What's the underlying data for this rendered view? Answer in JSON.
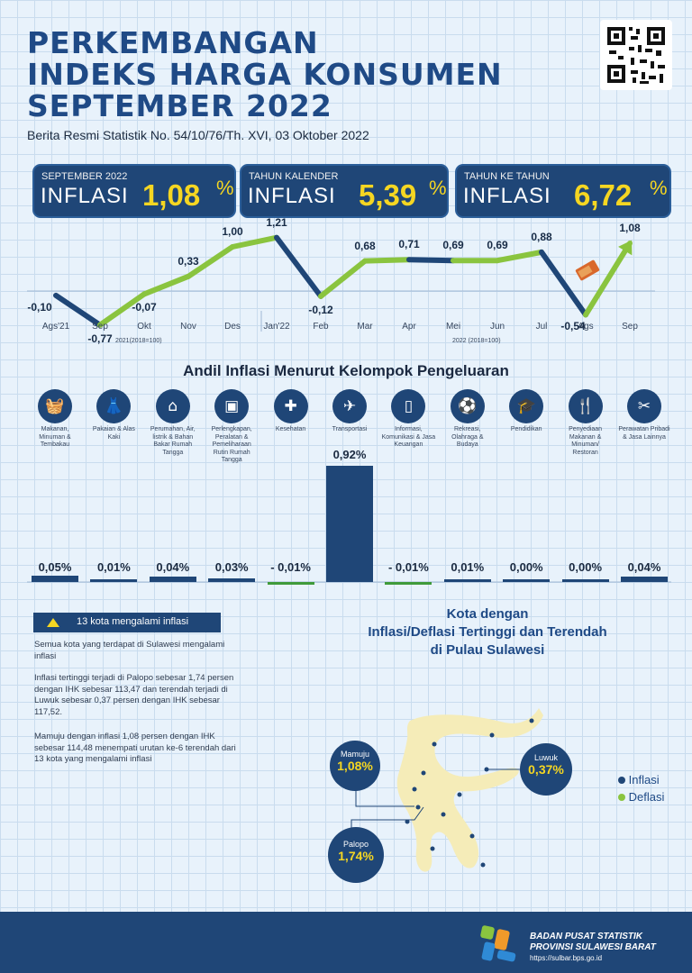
{
  "title": {
    "line1": "PERKEMBANGAN",
    "line2": "INDEKS HARGA KONSUMEN",
    "line3": "SEPTEMBER 2022",
    "subtitle": "Berita Resmi Statistik No. 54/10/76/Th. XVI, 03 Oktober 2022"
  },
  "boxes": [
    {
      "label": "SEPTEMBER 2022",
      "word": "INFLASI",
      "value": "1,08",
      "unit": "%"
    },
    {
      "label": "TAHUN KALENDER",
      "word": "INFLASI",
      "value": "5,39",
      "unit": "%"
    },
    {
      "label": "TAHUN KE TAHUN",
      "word": "INFLASI",
      "value": "6,72",
      "unit": "%"
    }
  ],
  "chart_data": [
    {
      "type": "line",
      "categories": [
        "Ags'21",
        "Sep",
        "Okt",
        "Nov",
        "Des",
        "Jan'22",
        "Feb",
        "Mar",
        "Apr",
        "Mei",
        "Jun",
        "Jul",
        "Ags",
        "Sep"
      ],
      "values": [
        -0.1,
        -0.77,
        -0.07,
        0.33,
        1.0,
        1.21,
        -0.12,
        0.68,
        0.71,
        0.69,
        0.69,
        0.88,
        -0.54,
        1.08
      ],
      "value_labels": [
        "-0,10",
        "-0,77",
        "-0,07",
        "0,33",
        "1,00",
        "1,21",
        "-0,12",
        "0,68",
        "0,71",
        "0,69",
        "0,69",
        "0,88",
        "-0,54",
        "1,08"
      ],
      "base_notes": [
        "2021(2018=100)",
        "2022 (2018=100)"
      ],
      "colors": {
        "rise": "#8ac43f",
        "fall": "#1f4677"
      }
    },
    {
      "type": "bar",
      "title": "Andil Inflasi Menurut Kelompok Pengeluaran",
      "categories": [
        "Makanan, Minuman & Tembakau",
        "Pakaian & Alas Kaki",
        "Perumahan, Air, listrik & Bahan Bakar Rumah Tangga",
        "Perlengkapan, Peralatan & Pemeliharaan Rutin Rumah Tangga",
        "Kesehatan",
        "Transportasi",
        "Informasi, Komunikasi & Jasa Keuangan",
        "Rekreasi, Olahraga & Budaya",
        "Pendidikan",
        "Penyediaan Makanan & Minuman/ Restoran",
        "Perawatan Pribadi & Jasa Lainnya"
      ],
      "values": [
        0.05,
        0.01,
        0.04,
        0.03,
        -0.01,
        0.92,
        -0.01,
        0.01,
        0.0,
        0.0,
        0.04
      ],
      "value_labels": [
        "0,05%",
        "0,01%",
        "0,04%",
        "0,03%",
        "- 0,01%",
        "0,92%",
        "- 0,01%",
        "0,01%",
        "0,00%",
        "0,00%",
        "0,04%"
      ],
      "icons": [
        "food-icon",
        "clothing-icon",
        "house-icon",
        "appliance-icon",
        "health-kit-icon",
        "airplane-icon",
        "smartphone-icon",
        "sport-icon",
        "graduation-cap-icon",
        "restaurant-icon",
        "tools-icon"
      ]
    }
  ],
  "kota": {
    "badge": "13 kota mengalami inflasi",
    "p1": "Semua kota yang terdapat di Sulawesi mengalami inflasi",
    "p2": "Inflasi tertinggi terjadi di Palopo sebesar 1,74 persen dengan IHK sebesar 113,47 dan terendah terjadi di Luwuk sebesar 0,37 persen dengan IHK sebesar 117,52.",
    "p3": "Mamuju dengan inflasi 1,08 persen dengan IHK sebesar 114,48 menempati urutan ke-6 terendah dari 13 kota yang mengalami inflasi"
  },
  "map": {
    "title1": "Kota dengan",
    "title2": "Inflasi/Deflasi Tertinggi dan Terendah",
    "title3": "di Pulau Sulawesi",
    "cities": [
      {
        "name": "Mamuju",
        "value": "1,08%"
      },
      {
        "name": "Luwuk",
        "value": "0,37%"
      },
      {
        "name": "Palopo",
        "value": "1,74%"
      }
    ],
    "legend": [
      {
        "label": "Inflasi",
        "color": "#1f4677"
      },
      {
        "label": "Deflasi",
        "color": "#8ac43f"
      }
    ]
  },
  "footer": {
    "org1": "BADAN PUSAT STATISTIK",
    "org2": "PROVINSI SULAWESI BARAT",
    "url": "https://sulbar.bps.go.id"
  }
}
